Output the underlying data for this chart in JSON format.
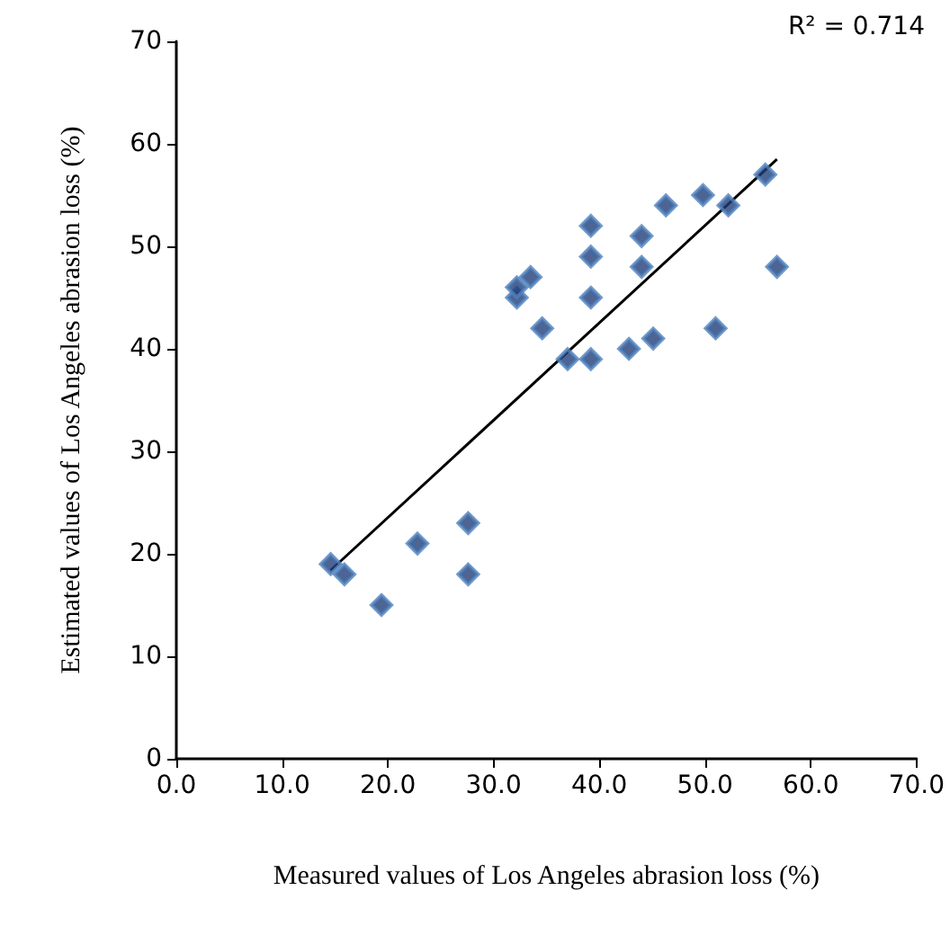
{
  "chart_data": {
    "type": "scatter",
    "xlabel": "Measured values of Los Angeles abrasion loss (%)",
    "ylabel": "Estimated values of Los Angeles abrasion loss (%)",
    "annotations": [
      "R² = 0.714"
    ],
    "series": [
      {
        "color": "#1f3f7a",
        "marker": "diamond",
        "x": [
          14.6,
          15.9,
          19.4,
          22.8,
          27.6,
          27.6,
          32.2,
          32.2,
          33.5,
          34.6,
          37.0,
          39.2,
          39.2,
          39.2,
          39.2,
          42.8,
          45.1,
          44.0,
          44.0,
          46.3,
          49.8,
          52.2,
          51.0,
          55.7,
          56.8
        ],
        "values": [
          19,
          18,
          15,
          21,
          23,
          18,
          45,
          46,
          47,
          42,
          39,
          39,
          45,
          49,
          52,
          40,
          41,
          48,
          51,
          54,
          55,
          54,
          42,
          57,
          48
        ]
      },
      {
        "type": "line",
        "color": "#000000",
        "marker": "none",
        "line_style": "solid",
        "x": [
          14.6,
          56.8
        ],
        "values": [
          18.4,
          58.5
        ]
      }
    ],
    "xlim": [
      0,
      70
    ],
    "xticks": [
      {
        "value": 0,
        "label": "0.0"
      },
      {
        "value": 10,
        "label": "10.0"
      },
      {
        "value": 20,
        "label": "20.0"
      },
      {
        "value": 30,
        "label": "30.0"
      },
      {
        "value": 40,
        "label": "40.0"
      },
      {
        "value": 50,
        "label": "50.0"
      },
      {
        "value": 60,
        "label": "60.0"
      },
      {
        "value": 70,
        "label": "70.0"
      }
    ],
    "ylim": [
      0,
      70
    ],
    "yticks": [
      0,
      10,
      20,
      30,
      40,
      50,
      60,
      70
    ],
    "grid": false
  }
}
